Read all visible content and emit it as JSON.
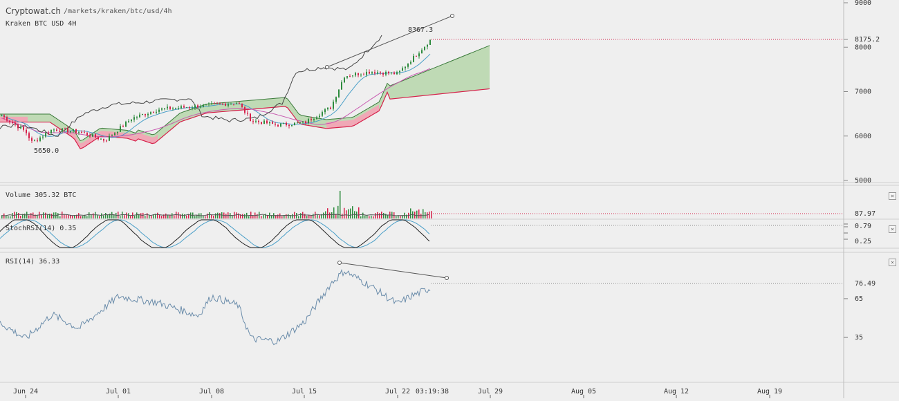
{
  "header": {
    "site_title": "Cryptowat.ch",
    "site_path": "/markets/kraken/btc/usd/4h",
    "market_label": "Kraken BTC USD 4H"
  },
  "panes": {
    "volume": {
      "label": "Volume 305.32 BTC",
      "last_value_label": "87.97"
    },
    "stochrsi": {
      "label": "StochRSI(14) 0.35",
      "value_label": "0.79",
      "lower_label": "0.25"
    },
    "rsi": {
      "label": "RSI(14) 36.33",
      "value_label": "76.49",
      "ticks": [
        "65",
        "35"
      ]
    }
  },
  "close_icon_glyph": "×",
  "colors": {
    "up": "#2e8b3e",
    "down": "#d6204a",
    "cloud_bull": "#b9d7ae",
    "cloud_bear": "#f0a8b6",
    "rsi_line": "#333333",
    "stoch_k": "#222222",
    "stoch_d": "#4a9fc8"
  },
  "chart_data": {
    "type": "candlestick",
    "exchange": "Kraken",
    "pair": "BTC/USD",
    "interval": "4H",
    "ylim": [
      5000,
      9000
    ],
    "y_ticks": [
      5000,
      6000,
      7000,
      8000,
      9000
    ],
    "x_ticks": [
      "Jun 24",
      "Jul 01",
      "Jul 08",
      "Jul 15",
      "Jul 22",
      "Jul 29",
      "Aug 05",
      "Aug 12",
      "Aug 19"
    ],
    "current_time_label": "03:19:38",
    "last_price": 8175.2,
    "annotations": {
      "high_label": "8367.3",
      "low_label": "5650.0"
    },
    "price_key_points": [
      {
        "date": "Jun 22",
        "close": 6500
      },
      {
        "date": "Jun 24",
        "close": 6100
      },
      {
        "date": "Jun 24 12h",
        "close": 5850
      },
      {
        "date": "Jun 26",
        "close": 6150
      },
      {
        "date": "Jun 28",
        "close": 6100
      },
      {
        "date": "Jun 30",
        "close": 5900
      },
      {
        "date": "Jul 02",
        "close": 6400
      },
      {
        "date": "Jul 04",
        "close": 6600
      },
      {
        "date": "Jul 06",
        "close": 6650
      },
      {
        "date": "Jul 08",
        "close": 6700
      },
      {
        "date": "Jul 10",
        "close": 6750
      },
      {
        "date": "Jul 11",
        "close": 6350
      },
      {
        "date": "Jul 13",
        "close": 6250
      },
      {
        "date": "Jul 15",
        "close": 6300
      },
      {
        "date": "Jul 17",
        "close": 6650
      },
      {
        "date": "Jul 18",
        "close": 7350
      },
      {
        "date": "Jul 20",
        "close": 7450
      },
      {
        "date": "Jul 22",
        "close": 7400
      },
      {
        "date": "Jul 23",
        "close": 7700
      },
      {
        "date": "Jul 24",
        "close": 8175.2
      }
    ],
    "volume_max_btc": 2900,
    "rsi_key_points": [
      {
        "date": "Jun 22",
        "rsi": 50
      },
      {
        "date": "Jun 24",
        "rsi": 37
      },
      {
        "date": "Jun 26",
        "rsi": 56
      },
      {
        "date": "Jun 28",
        "rsi": 45
      },
      {
        "date": "Jul 01",
        "rsi": 70
      },
      {
        "date": "Jul 04",
        "rsi": 65
      },
      {
        "date": "Jul 07",
        "rsi": 55
      },
      {
        "date": "Jul 08",
        "rsi": 70
      },
      {
        "date": "Jul 10",
        "rsi": 63
      },
      {
        "date": "Jul 11",
        "rsi": 37
      },
      {
        "date": "Jul 13",
        "rsi": 35
      },
      {
        "date": "Jul 15",
        "rsi": 50
      },
      {
        "date": "Jul 17",
        "rsi": 80
      },
      {
        "date": "Jul 18",
        "rsi": 90
      },
      {
        "date": "Jul 20",
        "rsi": 78
      },
      {
        "date": "Jul 22",
        "rsi": 64
      },
      {
        "date": "Jul 23",
        "rsi": 70
      },
      {
        "date": "Jul 24",
        "rsi": 76.49
      }
    ]
  }
}
